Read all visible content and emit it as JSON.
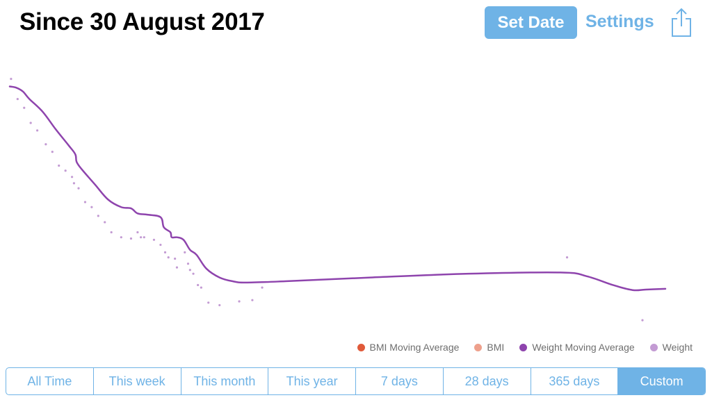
{
  "header": {
    "title": "Since 30 August 2017",
    "set_date_label": "Set Date",
    "settings_label": "Settings",
    "share_icon": "share-icon"
  },
  "colors": {
    "accent": "#6fb3e6",
    "bmi_moving_average": "#e05a3a",
    "bmi": "#eea08c",
    "weight_moving_average": "#8e44ad",
    "weight": "#c39bd3"
  },
  "legend": [
    {
      "label": "BMI Moving Average",
      "color": "#e05a3a"
    },
    {
      "label": "BMI",
      "color": "#eea08c"
    },
    {
      "label": "Weight Moving Average",
      "color": "#8e44ad"
    },
    {
      "label": "Weight",
      "color": "#c39bd3"
    }
  ],
  "segments": [
    {
      "label": "All Time",
      "active": false
    },
    {
      "label": "This week",
      "active": false
    },
    {
      "label": "This month",
      "active": false
    },
    {
      "label": "This year",
      "active": false
    },
    {
      "label": "7 days",
      "active": false
    },
    {
      "label": "28 days",
      "active": false
    },
    {
      "label": "365 days",
      "active": false
    },
    {
      "label": "Custom",
      "active": true
    }
  ],
  "chart_data": {
    "type": "line",
    "grid": false,
    "x_range": [
      0,
      100
    ],
    "y_range": [
      0,
      100
    ],
    "series": [
      {
        "name": "Weight Moving Average",
        "color": "#8e44ad",
        "style": "line",
        "points": [
          [
            0,
            96
          ],
          [
            1,
            95.5
          ],
          [
            2,
            94
          ],
          [
            3,
            91
          ],
          [
            5,
            86
          ],
          [
            7,
            79
          ],
          [
            9,
            72.5
          ],
          [
            10,
            69
          ],
          [
            10.2,
            66
          ],
          [
            11,
            63
          ],
          [
            13,
            57
          ],
          [
            15,
            51
          ],
          [
            17,
            48
          ],
          [
            18.5,
            47.5
          ],
          [
            19.5,
            45.5
          ],
          [
            21,
            45
          ],
          [
            23,
            44
          ],
          [
            23.5,
            40
          ],
          [
            24.5,
            38
          ],
          [
            24.7,
            36
          ],
          [
            25.5,
            36
          ],
          [
            26.5,
            35
          ],
          [
            27.5,
            31
          ],
          [
            28.5,
            29
          ],
          [
            30,
            23.5
          ],
          [
            32,
            20
          ],
          [
            34,
            18.5
          ],
          [
            36,
            18
          ],
          [
            42,
            18.5
          ],
          [
            55,
            20
          ],
          [
            70,
            21.5
          ],
          [
            84,
            22
          ],
          [
            88,
            20.5
          ],
          [
            92,
            17
          ],
          [
            95,
            15
          ],
          [
            97,
            15.2
          ],
          [
            100,
            15.5
          ]
        ]
      },
      {
        "name": "Weight",
        "color": "#c39bd3",
        "style": "scatter",
        "points": [
          [
            0.2,
            99
          ],
          [
            1.2,
            91
          ],
          [
            2.2,
            87.5
          ],
          [
            3.2,
            81.5
          ],
          [
            4.2,
            78.5
          ],
          [
            5.5,
            73
          ],
          [
            6.5,
            70
          ],
          [
            7.5,
            64.5
          ],
          [
            8.5,
            62.5
          ],
          [
            9.5,
            60
          ],
          [
            9.8,
            57.5
          ],
          [
            10.5,
            55.5
          ],
          [
            11.5,
            50
          ],
          [
            12.5,
            48
          ],
          [
            13.5,
            44.5
          ],
          [
            14.5,
            42
          ],
          [
            15.5,
            38
          ],
          [
            17,
            36
          ],
          [
            18.5,
            35.5
          ],
          [
            19.5,
            38
          ],
          [
            20,
            36
          ],
          [
            20.5,
            36
          ],
          [
            22,
            35
          ],
          [
            23,
            33
          ],
          [
            23.7,
            30
          ],
          [
            24.2,
            28
          ],
          [
            25.2,
            27.5
          ],
          [
            25.5,
            24
          ],
          [
            26.7,
            30
          ],
          [
            27.2,
            25.5
          ],
          [
            27.5,
            23
          ],
          [
            28,
            21.5
          ],
          [
            28.7,
            17
          ],
          [
            29.2,
            16
          ],
          [
            30.3,
            10
          ],
          [
            32,
            9
          ],
          [
            35,
            10.5
          ],
          [
            37,
            11
          ],
          [
            38.5,
            16
          ],
          [
            85,
            28
          ],
          [
            96.5,
            3
          ]
        ]
      }
    ]
  }
}
